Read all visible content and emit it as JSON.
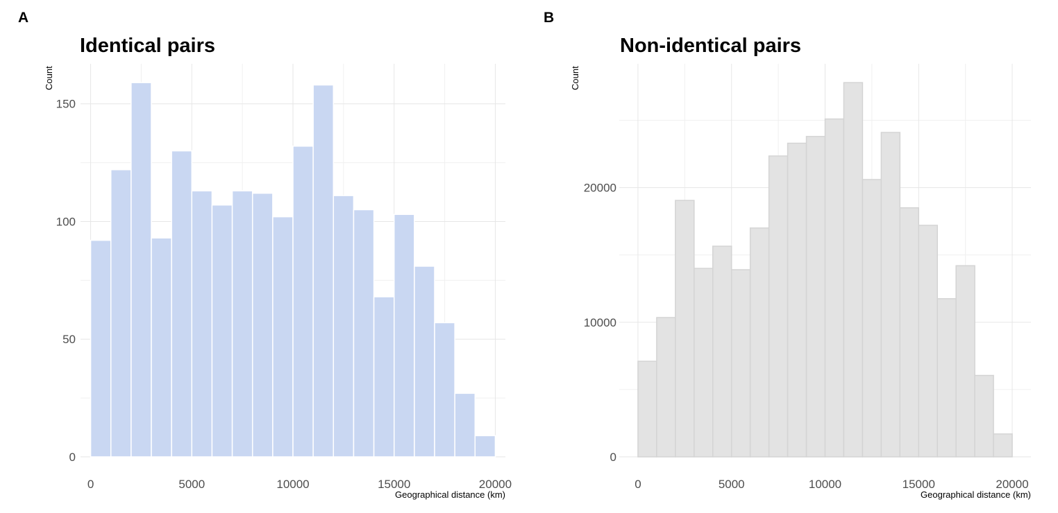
{
  "panels": [
    {
      "letter": "A",
      "title": "Identical pairs",
      "ylabel": "Count",
      "xlabel": "Geographical distance (km)"
    },
    {
      "letter": "B",
      "title": "Non-identical pairs",
      "ylabel": "Count",
      "xlabel": "Geographical distance (km)"
    }
  ],
  "chart_data": [
    {
      "type": "bar",
      "title": "Identical pairs",
      "xlabel": "Geographical distance (km)",
      "ylabel": "Count",
      "bin_width": 1000,
      "bin_starts": [
        0,
        1000,
        2000,
        3000,
        4000,
        5000,
        6000,
        7000,
        8000,
        9000,
        10000,
        11000,
        12000,
        13000,
        14000,
        15000,
        16000,
        17000,
        18000,
        19000
      ],
      "values": [
        92,
        122,
        159,
        93,
        130,
        113,
        107,
        113,
        112,
        102,
        132,
        158,
        111,
        105,
        68,
        103,
        81,
        57,
        27,
        9
      ],
      "xlim": [
        -500,
        20500
      ],
      "ylim": [
        0,
        167
      ],
      "xticks": [
        0,
        5000,
        10000,
        15000,
        20000
      ],
      "xtick_labels": [
        "0",
        "5000",
        "10000",
        "15000",
        "20000"
      ],
      "yticks": [
        0,
        50,
        100,
        150
      ],
      "ytick_labels": [
        "0",
        "50",
        "100",
        "150"
      ],
      "grid": true,
      "fill_color": "#c9d7f2",
      "edge_color": "#ffffff"
    },
    {
      "type": "bar",
      "title": "Non-identical pairs",
      "xlabel": "Geographical distance (km)",
      "ylabel": "Count",
      "bin_width": 1000,
      "bin_starts": [
        0,
        1000,
        2000,
        3000,
        4000,
        5000,
        6000,
        7000,
        8000,
        9000,
        10000,
        11000,
        12000,
        13000,
        14000,
        15000,
        16000,
        17000,
        18000,
        19000
      ],
      "values": [
        7100,
        10350,
        19050,
        14000,
        15650,
        13900,
        17000,
        22350,
        23300,
        23800,
        25100,
        27800,
        20600,
        24100,
        18500,
        17200,
        11750,
        14200,
        6050,
        1700
      ],
      "xlim": [
        -1000,
        21000
      ],
      "ylim": [
        0,
        29200
      ],
      "xticks": [
        0,
        5000,
        10000,
        15000,
        20000
      ],
      "xtick_labels": [
        "0",
        "5000",
        "10000",
        "15000",
        "20000"
      ],
      "yticks": [
        0,
        10000,
        20000
      ],
      "ytick_labels": [
        "0",
        "10000",
        "20000"
      ],
      "grid": true,
      "fill_color": "#e3e3e3",
      "edge_color": "#d4d4d4"
    }
  ]
}
